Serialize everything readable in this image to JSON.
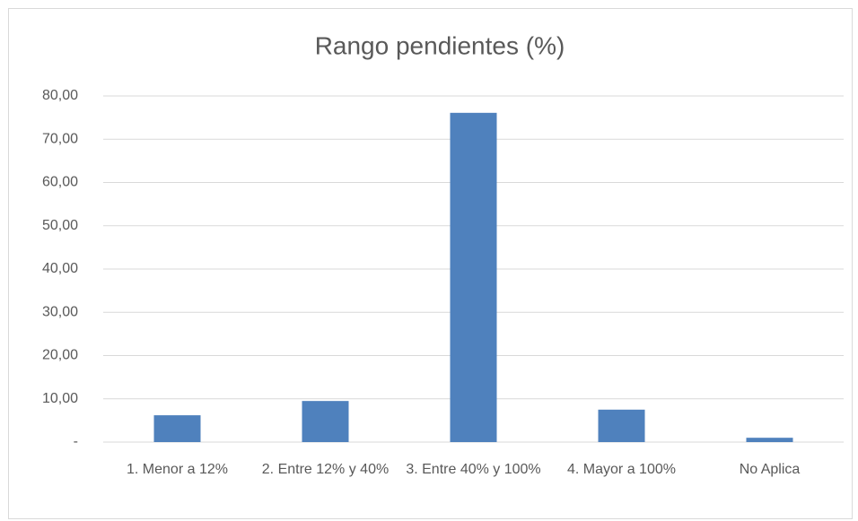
{
  "chart_data": {
    "type": "bar",
    "title": "Rango pendientes (%)",
    "categories": [
      "1. Menor a 12%",
      "2. Entre 12% y 40%",
      "3. Entre 40% y 100%",
      "4. Mayor a 100%",
      "No Aplica"
    ],
    "values": [
      6.2,
      9.5,
      76.1,
      7.5,
      1.0
    ],
    "color": "#4f81bd",
    "ylim": [
      0,
      80
    ],
    "yticks": [
      {
        "value": 0,
        "label": "-"
      },
      {
        "value": 10,
        "label": "10,00"
      },
      {
        "value": 20,
        "label": "20,00"
      },
      {
        "value": 30,
        "label": "30,00"
      },
      {
        "value": 40,
        "label": "40,00"
      },
      {
        "value": 50,
        "label": "50,00"
      },
      {
        "value": 60,
        "label": "60,00"
      },
      {
        "value": 70,
        "label": "70,00"
      },
      {
        "value": 80,
        "label": "80,00"
      }
    ],
    "grid": true
  }
}
